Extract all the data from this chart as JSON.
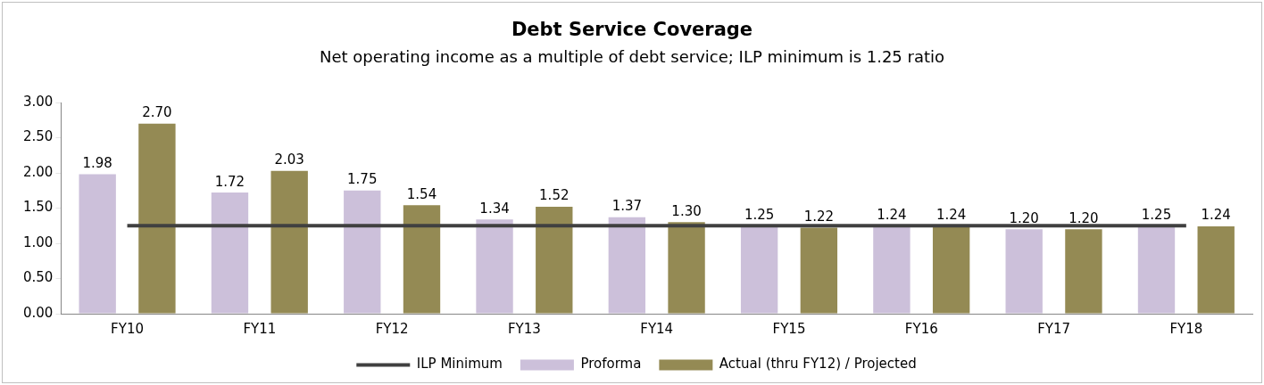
{
  "chart_data": {
    "type": "bar",
    "title": "Debt Service Coverage",
    "subtitle": "Net operating income as a multiple of debt service; ILP minimum is 1.25 ratio",
    "categories": [
      "FY10",
      "FY11",
      "FY12",
      "FY13",
      "FY14",
      "FY15",
      "FY16",
      "FY17",
      "FY18"
    ],
    "series": [
      {
        "name": "Proforma",
        "color": "#ccc0da",
        "values": [
          1.98,
          1.72,
          1.75,
          1.34,
          1.37,
          1.25,
          1.24,
          1.2,
          1.25
        ],
        "value_labels": [
          "1.98",
          "1.72",
          "1.75",
          "1.34",
          "1.37",
          "1.25",
          "1.24",
          "1.20",
          "1.25"
        ]
      },
      {
        "name": "Actual (thru FY12) / Projected",
        "color": "#948a54",
        "values": [
          2.7,
          2.03,
          1.54,
          1.52,
          1.3,
          1.22,
          1.24,
          1.2,
          1.24
        ],
        "value_labels": [
          "2.70",
          "2.03",
          "1.54",
          "1.52",
          "1.30",
          "1.22",
          "1.24",
          "1.20",
          "1.24"
        ]
      },
      {
        "name": "ILP Minimum",
        "type": "line",
        "color": "#404040",
        "values": [
          1.25,
          1.25,
          1.25,
          1.25,
          1.25,
          1.25,
          1.25,
          1.25,
          1.25
        ]
      }
    ],
    "ylim": [
      0,
      3
    ],
    "yticks": [
      {
        "value": 0,
        "label": "0.00"
      },
      {
        "value": 0.5,
        "label": "0.50"
      },
      {
        "value": 1,
        "label": "1.00"
      },
      {
        "value": 1.5,
        "label": "1.50"
      },
      {
        "value": 2,
        "label": "2.00"
      },
      {
        "value": 2.5,
        "label": "2.50"
      },
      {
        "value": 3,
        "label": "3.00"
      }
    ],
    "grid": false,
    "legend": "bottom",
    "marker": "none",
    "line_style": "solid"
  }
}
